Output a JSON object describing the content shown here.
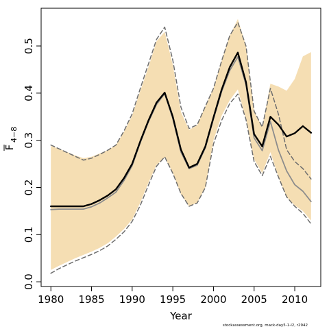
{
  "chart_data": {
    "type": "line",
    "title": "",
    "xlabel": "Year",
    "ylabel": "F̅ 4–8",
    "ylabel_main": "F",
    "ylabel_sub": "4−8",
    "xlim": [
      1978.8,
      2013.2
    ],
    "ylim": [
      -0.01,
      0.58
    ],
    "x_ticks": [
      1980,
      1985,
      1990,
      1995,
      2000,
      2005,
      2010
    ],
    "y_ticks": [
      0.0,
      0.1,
      0.2,
      0.3,
      0.4,
      0.5
    ],
    "y_tick_labels": [
      "0.0",
      "0.1",
      "0.2",
      "0.3",
      "0.4",
      "0.5"
    ],
    "x": [
      1980,
      1981,
      1982,
      1983,
      1984,
      1985,
      1986,
      1987,
      1988,
      1989,
      1990,
      1991,
      1992,
      1993,
      1994,
      1995,
      1996,
      1997,
      1998,
      1999,
      2000,
      2001,
      2002,
      2003,
      2004,
      2005,
      2006,
      2007,
      2008,
      2009,
      2010,
      2011,
      2012
    ],
    "band": {
      "color": "#f5deb3",
      "upper": [
        0.288,
        0.282,
        0.275,
        0.268,
        0.262,
        0.265,
        0.272,
        0.279,
        0.29,
        0.318,
        0.352,
        0.405,
        0.455,
        0.51,
        0.53,
        0.46,
        0.36,
        0.322,
        0.332,
        0.372,
        0.41,
        0.468,
        0.522,
        0.557,
        0.5,
        0.362,
        0.328,
        0.42,
        0.414,
        0.405,
        0.43,
        0.478,
        0.487
      ],
      "lower": [
        0.025,
        0.034,
        0.042,
        0.05,
        0.057,
        0.064,
        0.072,
        0.082,
        0.096,
        0.112,
        0.132,
        0.168,
        0.21,
        0.248,
        0.263,
        0.232,
        0.185,
        0.16,
        0.168,
        0.2,
        0.3,
        0.352,
        0.385,
        0.408,
        0.345,
        0.26,
        0.23,
        0.275,
        0.222,
        0.18,
        0.162,
        0.15,
        0.13
      ]
    },
    "series": [
      {
        "color": "#000000",
        "width": 2.4,
        "dash": "",
        "values": [
          0.16,
          0.16,
          0.16,
          0.16,
          0.16,
          0.165,
          0.173,
          0.183,
          0.196,
          0.22,
          0.25,
          0.298,
          0.342,
          0.38,
          0.401,
          0.35,
          0.28,
          0.242,
          0.25,
          0.287,
          0.348,
          0.407,
          0.455,
          0.486,
          0.423,
          0.313,
          0.287,
          0.35,
          0.333,
          0.308,
          0.315,
          0.33,
          0.316
        ]
      },
      {
        "color": "#8c8c8c",
        "width": 1.8,
        "dash": "",
        "values": [
          0.153,
          0.154,
          0.154,
          0.154,
          0.154,
          0.159,
          0.167,
          0.178,
          0.19,
          0.215,
          0.246,
          0.295,
          0.339,
          0.376,
          0.399,
          0.346,
          0.275,
          0.24,
          0.247,
          0.284,
          0.345,
          0.403,
          0.448,
          0.477,
          0.418,
          0.305,
          0.278,
          0.34,
          0.279,
          0.235,
          0.206,
          0.192,
          0.17
        ]
      },
      {
        "color": "#6e6e6e",
        "width": 1.5,
        "dash": "6 4",
        "values": [
          0.29,
          0.282,
          0.274,
          0.266,
          0.258,
          0.262,
          0.27,
          0.279,
          0.29,
          0.32,
          0.356,
          0.41,
          0.462,
          0.514,
          0.54,
          0.47,
          0.37,
          0.325,
          0.333,
          0.372,
          0.41,
          0.468,
          0.522,
          0.55,
          0.5,
          0.362,
          0.328,
          0.41,
          0.355,
          0.28,
          0.255,
          0.24,
          0.218
        ]
      },
      {
        "color": "#6e6e6e",
        "width": 1.5,
        "dash": "6 4",
        "values": [
          0.018,
          0.028,
          0.036,
          0.044,
          0.051,
          0.058,
          0.066,
          0.076,
          0.09,
          0.106,
          0.128,
          0.162,
          0.205,
          0.245,
          0.265,
          0.23,
          0.187,
          0.16,
          0.167,
          0.2,
          0.292,
          0.342,
          0.378,
          0.398,
          0.344,
          0.255,
          0.225,
          0.266,
          0.222,
          0.18,
          0.16,
          0.145,
          0.123
        ]
      }
    ]
  },
  "footer": {
    "text": "stockassessment.org, mack-day5-1-l2, r2942"
  }
}
